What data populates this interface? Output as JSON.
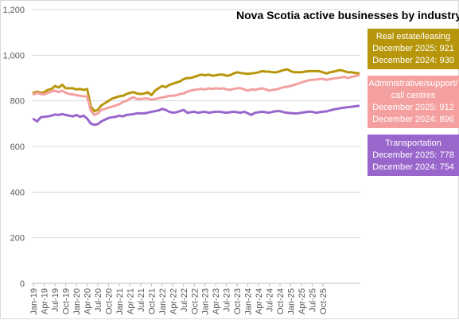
{
  "chart_data": {
    "type": "line",
    "title": "Nova Scotia active businesses by industry",
    "xlabel": "",
    "ylabel": "",
    "ylim": [
      0,
      1200
    ],
    "yticks": [
      0,
      200,
      400,
      600,
      800,
      1000,
      1200
    ],
    "ytick_labels": [
      "0",
      "200",
      "400",
      "600",
      "800",
      "1,000",
      "1,200"
    ],
    "x_tick_labels": [
      "Jan-19",
      "Apr-19",
      "Jul-19",
      "Oct-19",
      "Jan-20",
      "Apr-20",
      "Jul-20",
      "Oct-20",
      "Jan-21",
      "Apr-21",
      "Jul-21",
      "Oct-21",
      "Jan-22",
      "Apr-22",
      "Jul-22",
      "Oct-22",
      "Jan-23",
      "Apr-23",
      "Jul-23",
      "Oct-23",
      "Jan-24",
      "Apr-24",
      "Jul-24",
      "Oct-24",
      "Jan-25",
      "Apr-25",
      "Jul-25",
      "Oct-25"
    ],
    "x_start": "Jan-19",
    "x_end": "Dec-25",
    "grid": true,
    "legend": "right",
    "series": [
      {
        "name": "Real estate/leasing",
        "color": "#b8960c",
        "label_lines": [
          "Real estate/leasing",
          "December 2025: 921",
          "December 2024: 930"
        ],
        "values": [
          835,
          840,
          835,
          838,
          848,
          852,
          865,
          858,
          870,
          855,
          855,
          855,
          850,
          852,
          848,
          852,
          775,
          755,
          760,
          780,
          790,
          800,
          810,
          815,
          820,
          822,
          830,
          835,
          838,
          832,
          830,
          832,
          838,
          825,
          845,
          855,
          865,
          860,
          870,
          875,
          880,
          885,
          895,
          900,
          900,
          905,
          910,
          915,
          912,
          915,
          910,
          912,
          915,
          915,
          910,
          912,
          920,
          925,
          922,
          920,
          918,
          920,
          922,
          925,
          930,
          928,
          928,
          925,
          925,
          930,
          935,
          938,
          930,
          925,
          925,
          925,
          928,
          930,
          930,
          930,
          930,
          925,
          920,
          925,
          928,
          932,
          935,
          930,
          925,
          925,
          922,
          921
        ]
      },
      {
        "name": "Administrative/support/call centres",
        "color": "#f4a0a0",
        "label_lines": [
          "Administrative/support/",
          "call centres",
          "December 2025: 912",
          "December 2024: 896"
        ],
        "values": [
          828,
          835,
          830,
          828,
          835,
          840,
          845,
          838,
          845,
          835,
          830,
          828,
          825,
          822,
          820,
          818,
          758,
          738,
          745,
          760,
          765,
          770,
          775,
          780,
          785,
          795,
          800,
          810,
          815,
          808,
          808,
          810,
          810,
          805,
          808,
          812,
          815,
          818,
          822,
          822,
          825,
          830,
          832,
          840,
          845,
          848,
          850,
          852,
          850,
          855,
          852,
          855,
          853,
          855,
          850,
          848,
          852,
          855,
          855,
          850,
          845,
          850,
          848,
          852,
          855,
          850,
          845,
          848,
          850,
          855,
          860,
          862,
          865,
          870,
          875,
          880,
          885,
          890,
          892,
          893,
          895,
          896,
          892,
          895,
          898,
          900,
          902,
          905,
          900,
          905,
          908,
          912
        ]
      },
      {
        "name": "Transportation",
        "color": "#9966cc",
        "label_lines": [
          "Transportation",
          "December 2025: 778",
          "December 2024: 754"
        ],
        "values": [
          720,
          710,
          728,
          730,
          732,
          735,
          740,
          738,
          742,
          738,
          735,
          732,
          738,
          730,
          735,
          722,
          700,
          695,
          698,
          710,
          718,
          725,
          728,
          730,
          735,
          732,
          738,
          740,
          742,
          745,
          745,
          745,
          748,
          752,
          755,
          758,
          765,
          760,
          752,
          748,
          750,
          755,
          760,
          748,
          750,
          752,
          748,
          750,
          752,
          748,
          750,
          752,
          752,
          750,
          748,
          750,
          752,
          750,
          748,
          752,
          745,
          738,
          748,
          750,
          752,
          750,
          748,
          752,
          755,
          755,
          750,
          748,
          746,
          745,
          745,
          748,
          750,
          752,
          752,
          748,
          750,
          752,
          754,
          758,
          762,
          765,
          768,
          770,
          772,
          774,
          776,
          778
        ]
      }
    ]
  }
}
